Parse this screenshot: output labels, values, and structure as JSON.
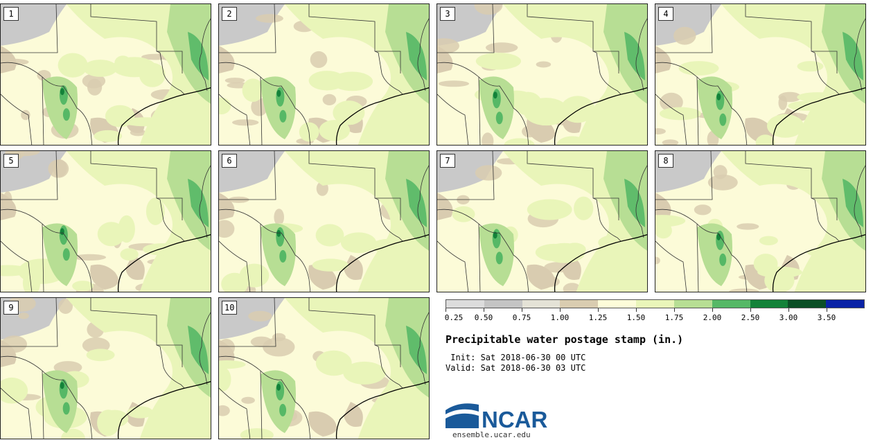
{
  "panels": [
    {
      "label": "1"
    },
    {
      "label": "2"
    },
    {
      "label": "3"
    },
    {
      "label": "4"
    },
    {
      "label": "5"
    },
    {
      "label": "6"
    },
    {
      "label": "7"
    },
    {
      "label": "8"
    },
    {
      "label": "9"
    },
    {
      "label": "10"
    }
  ],
  "legend": {
    "ticks": [
      "0.25",
      "0.50",
      "0.75",
      "1.00",
      "1.25",
      "1.50",
      "1.75",
      "2.00",
      "2.50",
      "3.00",
      "3.50"
    ],
    "colors": [
      "#dcdcdc",
      "#c4c4c4",
      "#e4e2d6",
      "#d9ccb0",
      "#fdfcd9",
      "#e9f5b9",
      "#b7de94",
      "#56b866",
      "#138239",
      "#0b4f26",
      "#0a22a6"
    ]
  },
  "title": "Precipitable water postage stamp (in.)",
  "init_line": "Init: Sat 2018-06-30 00 UTC",
  "valid_line": "Valid: Sat 2018-06-30 03 UTC",
  "logo": {
    "text": "NCAR",
    "url": "ensemble.ucar.edu"
  },
  "colors": {
    "background": "#fcfbd8",
    "tan": "#d9ccb0",
    "light_green": "#e9f5b9",
    "mid_green": "#b7de94",
    "green": "#56b866",
    "dark_green": "#138239",
    "gray": "#c9c9c9",
    "ncar_blue": "#1a5a9a"
  }
}
